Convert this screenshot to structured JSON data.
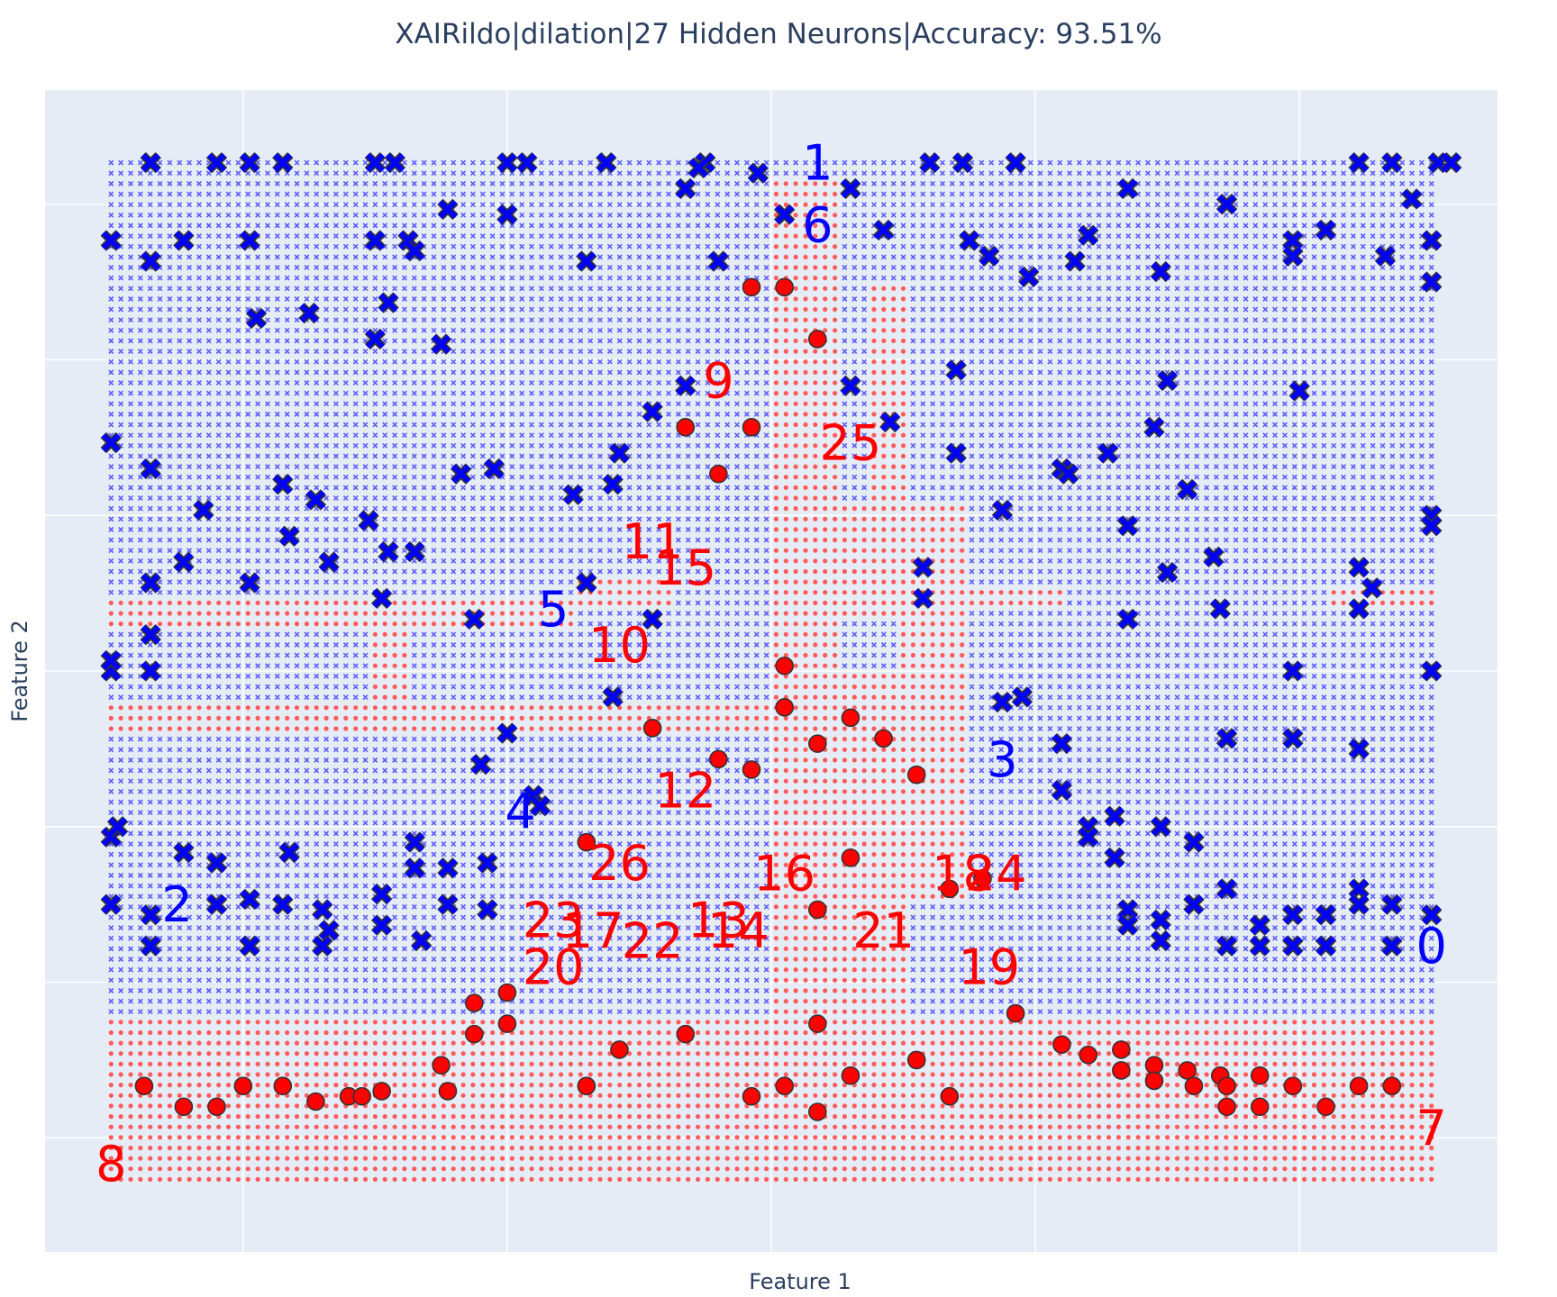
{
  "chart_data": {
    "type": "scatter",
    "title": "XAIRildo|dilation|27 Hidden Neurons|Accuracy: 93.51%",
    "xlabel": "Feature 1",
    "ylabel": "Feature 2",
    "xlim": [
      -1.1,
      1.1
    ],
    "ylim": [
      -1.12,
      1.12
    ],
    "xticks": [
      -0.8,
      -0.4,
      0,
      0.4,
      0.8
    ],
    "yticks": [
      -0.9,
      -0.6,
      -0.3,
      0,
      0.3,
      0.6,
      0.9
    ],
    "grid": true,
    "legend": "none",
    "colors": {
      "plot_bg": "#e5ecf6",
      "grid": "#ffffff",
      "class0": "#0000ff",
      "class1": "#ff0000",
      "grid_class0": "#5b5bff",
      "grid_class1": "#ff5b5b",
      "marker_outline": "#333333"
    },
    "decision_grid": {
      "x_range": [
        -1,
        1
      ],
      "y_range": [
        -0.98,
        0.98
      ],
      "columns": 136,
      "rows": 98,
      "background_class": 0,
      "class1_rectangles": [
        [
          -1,
          1,
          -0.98,
          -0.67
        ],
        [
          -1,
          -0.3,
          0.08,
          0.15
        ],
        [
          -1,
          0.3,
          -0.12,
          -0.07
        ],
        [
          -0.3,
          -0.15,
          0.12,
          0.19
        ],
        [
          -0.3,
          0.05,
          -0.12,
          -0.07
        ],
        [
          0.0,
          0.1,
          -0.67,
          0.95
        ],
        [
          0.15,
          0.2,
          0.1,
          0.75
        ],
        [
          0.1,
          0.25,
          0.1,
          0.33
        ],
        [
          0.0,
          0.3,
          0.1,
          0.33
        ],
        [
          0.0,
          0.3,
          -0.45,
          0.0
        ],
        [
          0.0,
          0.2,
          -0.67,
          -0.45
        ],
        [
          0.2,
          0.3,
          -0.05,
          0.1
        ],
        [
          -0.6,
          -0.55,
          -0.12,
          0.15
        ],
        [
          0.3,
          0.45,
          0.12,
          0.16
        ],
        [
          0.85,
          1.0,
          0.12,
          0.16
        ]
      ]
    },
    "series": [
      {
        "class": 0,
        "symbol": "x",
        "points": [
          [
            -0.94,
            0.98
          ],
          [
            -0.84,
            0.98
          ],
          [
            -0.79,
            0.98
          ],
          [
            -0.74,
            0.98
          ],
          [
            -0.6,
            0.98
          ],
          [
            -0.57,
            0.98
          ],
          [
            -0.4,
            0.98
          ],
          [
            -0.37,
            0.98
          ],
          [
            -0.25,
            0.98
          ],
          [
            -0.1,
            0.98
          ],
          [
            -0.11,
            0.97
          ],
          [
            -0.02,
            0.96
          ],
          [
            -0.13,
            0.93
          ],
          [
            0.12,
            0.93
          ],
          [
            0.24,
            0.98
          ],
          [
            0.29,
            0.98
          ],
          [
            0.37,
            0.98
          ],
          [
            0.54,
            0.93
          ],
          [
            -0.49,
            0.89
          ],
          [
            -0.4,
            0.88
          ],
          [
            0.02,
            0.88
          ],
          [
            0.69,
            0.9
          ],
          [
            0.89,
            0.98
          ],
          [
            0.94,
            0.98
          ],
          [
            1.01,
            0.98
          ],
          [
            1.03,
            0.98
          ],
          [
            0.97,
            0.91
          ],
          [
            -1.0,
            0.83
          ],
          [
            -0.89,
            0.83
          ],
          [
            -0.79,
            0.83
          ],
          [
            -0.6,
            0.83
          ],
          [
            -0.55,
            0.83
          ],
          [
            -0.94,
            0.79
          ],
          [
            -0.54,
            0.81
          ],
          [
            -0.28,
            0.79
          ],
          [
            -0.08,
            0.79
          ],
          [
            0.17,
            0.85
          ],
          [
            0.3,
            0.83
          ],
          [
            0.33,
            0.8
          ],
          [
            0.39,
            0.76
          ],
          [
            0.48,
            0.84
          ],
          [
            0.46,
            0.79
          ],
          [
            0.59,
            0.77
          ],
          [
            0.79,
            0.83
          ],
          [
            0.79,
            0.8
          ],
          [
            0.84,
            0.85
          ],
          [
            1.0,
            0.83
          ],
          [
            1.0,
            0.75
          ],
          [
            0.93,
            0.8
          ],
          [
            -0.78,
            0.68
          ],
          [
            -0.7,
            0.69
          ],
          [
            -0.58,
            0.71
          ],
          [
            -0.6,
            0.64
          ],
          [
            -0.5,
            0.63
          ],
          [
            -0.13,
            0.55
          ],
          [
            0.12,
            0.55
          ],
          [
            0.28,
            0.58
          ],
          [
            0.6,
            0.56
          ],
          [
            0.8,
            0.54
          ],
          [
            -1.0,
            0.44
          ],
          [
            -0.94,
            0.39
          ],
          [
            -0.86,
            0.31
          ],
          [
            -0.74,
            0.36
          ],
          [
            -0.69,
            0.33
          ],
          [
            -0.42,
            0.39
          ],
          [
            -0.47,
            0.38
          ],
          [
            -0.3,
            0.34
          ],
          [
            -0.18,
            0.5
          ],
          [
            -0.23,
            0.42
          ],
          [
            0.18,
            0.48
          ],
          [
            0.28,
            0.42
          ],
          [
            0.51,
            0.42
          ],
          [
            -0.61,
            0.29
          ],
          [
            -0.24,
            0.36
          ],
          [
            -0.54,
            0.23
          ],
          [
            0.35,
            0.31
          ],
          [
            0.44,
            0.39
          ],
          [
            0.45,
            0.38
          ],
          [
            0.58,
            0.47
          ],
          [
            0.63,
            0.35
          ],
          [
            0.54,
            0.28
          ],
          [
            1.0,
            0.3
          ],
          [
            1.0,
            0.28
          ],
          [
            -0.89,
            0.21
          ],
          [
            -0.94,
            0.17
          ],
          [
            -0.73,
            0.26
          ],
          [
            -0.67,
            0.21
          ],
          [
            -0.94,
            0.07
          ],
          [
            -0.79,
            0.17
          ],
          [
            -0.59,
            0.14
          ],
          [
            -0.45,
            0.1
          ],
          [
            -0.28,
            0.17
          ],
          [
            -0.18,
            0.1
          ],
          [
            0.23,
            0.2
          ],
          [
            0.23,
            0.14
          ],
          [
            0.6,
            0.19
          ],
          [
            0.67,
            0.22
          ],
          [
            0.68,
            0.12
          ],
          [
            0.89,
            0.2
          ],
          [
            0.89,
            0.12
          ],
          [
            0.91,
            0.16
          ],
          [
            -1.0,
            0.0
          ],
          [
            -1.0,
            0.02
          ],
          [
            -0.94,
            0.0
          ],
          [
            -0.58,
            0.23
          ],
          [
            0.54,
            0.1
          ],
          [
            0.79,
            0.0
          ],
          [
            1.0,
            0.0
          ],
          [
            -0.24,
            -0.05
          ],
          [
            0.35,
            -0.06
          ],
          [
            0.38,
            -0.05
          ],
          [
            0.44,
            -0.14
          ],
          [
            0.48,
            -0.3
          ],
          [
            0.44,
            -0.23
          ],
          [
            -0.4,
            -0.12
          ],
          [
            -0.36,
            -0.24
          ],
          [
            -0.35,
            -0.26
          ],
          [
            -0.44,
            -0.18
          ],
          [
            0.59,
            -0.3
          ],
          [
            0.52,
            -0.28
          ],
          [
            0.48,
            -0.32
          ],
          [
            0.52,
            -0.36
          ],
          [
            -1.0,
            -0.32
          ],
          [
            -1.0,
            -0.45
          ],
          [
            -0.89,
            -0.35
          ],
          [
            -0.84,
            -0.37
          ],
          [
            -0.84,
            -0.45
          ],
          [
            -0.79,
            -0.44
          ],
          [
            -0.73,
            -0.35
          ],
          [
            -0.74,
            -0.45
          ],
          [
            -0.68,
            -0.46
          ],
          [
            -0.67,
            -0.5
          ],
          [
            -0.59,
            -0.43
          ],
          [
            -0.59,
            -0.49
          ],
          [
            -0.54,
            -0.38
          ],
          [
            -0.54,
            -0.33
          ],
          [
            -0.49,
            -0.38
          ],
          [
            -0.49,
            -0.45
          ],
          [
            -0.43,
            -0.37
          ],
          [
            -0.43,
            -0.46
          ],
          [
            -0.99,
            -0.3
          ],
          [
            -0.94,
            -0.47
          ],
          [
            -0.94,
            -0.53
          ],
          [
            -0.79,
            -0.53
          ],
          [
            -0.68,
            -0.53
          ],
          [
            -0.53,
            -0.52
          ],
          [
            0.54,
            -0.46
          ],
          [
            0.54,
            -0.49
          ],
          [
            0.59,
            -0.48
          ],
          [
            0.59,
            -0.52
          ],
          [
            0.64,
            -0.45
          ],
          [
            0.69,
            -0.42
          ],
          [
            0.69,
            -0.53
          ],
          [
            0.74,
            -0.49
          ],
          [
            0.74,
            -0.53
          ],
          [
            0.79,
            -0.47
          ],
          [
            0.79,
            -0.53
          ],
          [
            0.84,
            -0.47
          ],
          [
            0.84,
            -0.53
          ],
          [
            0.89,
            -0.42
          ],
          [
            0.89,
            -0.45
          ],
          [
            0.94,
            -0.45
          ],
          [
            0.94,
            -0.53
          ],
          [
            1.0,
            -0.47
          ],
          [
            0.64,
            -0.33
          ],
          [
            0.69,
            -0.13
          ],
          [
            0.79,
            -0.13
          ],
          [
            0.89,
            -0.15
          ]
        ]
      },
      {
        "class": 1,
        "symbol": "circle",
        "points": [
          [
            -0.03,
            0.74
          ],
          [
            0.02,
            0.74
          ],
          [
            0.07,
            0.64
          ],
          [
            -0.13,
            0.47
          ],
          [
            -0.03,
            0.47
          ],
          [
            -0.08,
            0.38
          ],
          [
            0.02,
            0.01
          ],
          [
            0.02,
            -0.07
          ],
          [
            0.12,
            -0.09
          ],
          [
            0.07,
            -0.14
          ],
          [
            0.17,
            -0.13
          ],
          [
            -0.08,
            -0.17
          ],
          [
            -0.03,
            -0.19
          ],
          [
            0.22,
            -0.2
          ],
          [
            -0.18,
            -0.11
          ],
          [
            -0.28,
            -0.33
          ],
          [
            0.12,
            -0.36
          ],
          [
            0.07,
            -0.46
          ],
          [
            0.27,
            -0.42
          ],
          [
            0.32,
            -0.4
          ],
          [
            -0.4,
            -0.62
          ],
          [
            -0.45,
            -0.64
          ],
          [
            -0.45,
            -0.7
          ],
          [
            -0.4,
            -0.68
          ],
          [
            -0.23,
            -0.73
          ],
          [
            -0.13,
            -0.7
          ],
          [
            0.07,
            -0.68
          ],
          [
            0.37,
            -0.66
          ],
          [
            0.44,
            -0.72
          ],
          [
            0.48,
            -0.74
          ],
          [
            0.53,
            -0.73
          ],
          [
            0.58,
            -0.76
          ],
          [
            0.63,
            -0.77
          ],
          [
            0.68,
            -0.78
          ],
          [
            0.74,
            -0.78
          ],
          [
            0.07,
            -0.85
          ],
          [
            0.12,
            -0.78
          ],
          [
            0.22,
            -0.75
          ],
          [
            -0.5,
            -0.76
          ],
          [
            -0.28,
            -0.8
          ],
          [
            -0.49,
            -0.81
          ],
          [
            -0.95,
            -0.8
          ],
          [
            -0.8,
            -0.8
          ],
          [
            -0.74,
            -0.8
          ],
          [
            -0.89,
            -0.84
          ],
          [
            -0.84,
            -0.84
          ],
          [
            -0.69,
            -0.83
          ],
          [
            -0.64,
            -0.82
          ],
          [
            -0.59,
            -0.81
          ],
          [
            -0.03,
            -0.82
          ],
          [
            0.02,
            -0.8
          ],
          [
            0.27,
            -0.82
          ],
          [
            0.53,
            -0.77
          ],
          [
            0.58,
            -0.79
          ],
          [
            0.64,
            -0.8
          ],
          [
            0.69,
            -0.8
          ],
          [
            0.79,
            -0.8
          ],
          [
            0.89,
            -0.8
          ],
          [
            0.94,
            -0.8
          ],
          [
            0.69,
            -0.84
          ],
          [
            0.74,
            -0.84
          ],
          [
            0.84,
            -0.84
          ],
          [
            -0.62,
            -0.82
          ]
        ]
      }
    ],
    "annotations": [
      {
        "text": "0",
        "x": 1.0,
        "y": -0.53,
        "class": 0
      },
      {
        "text": "1",
        "x": 0.07,
        "y": 0.98,
        "class": 0
      },
      {
        "text": "2",
        "x": -0.9,
        "y": -0.45,
        "class": 0
      },
      {
        "text": "3",
        "x": 0.35,
        "y": -0.17,
        "class": 0
      },
      {
        "text": "4",
        "x": -0.38,
        "y": -0.27,
        "class": 0
      },
      {
        "text": "5",
        "x": -0.33,
        "y": 0.12,
        "class": 0
      },
      {
        "text": "6",
        "x": 0.07,
        "y": 0.86,
        "class": 0
      },
      {
        "text": "7",
        "x": 1.0,
        "y": -0.88,
        "class": 1
      },
      {
        "text": "8",
        "x": -1.0,
        "y": -0.95,
        "class": 1
      },
      {
        "text": "9",
        "x": -0.08,
        "y": 0.56,
        "class": 1
      },
      {
        "text": "10",
        "x": -0.23,
        "y": 0.05,
        "class": 1
      },
      {
        "text": "11",
        "x": -0.18,
        "y": 0.25,
        "class": 1
      },
      {
        "text": "12",
        "x": -0.13,
        "y": -0.23,
        "class": 1
      },
      {
        "text": "13",
        "x": -0.08,
        "y": -0.48,
        "class": 1
      },
      {
        "text": "14",
        "x": -0.05,
        "y": -0.5,
        "class": 1
      },
      {
        "text": "15",
        "x": -0.13,
        "y": 0.2,
        "class": 1
      },
      {
        "text": "16",
        "x": 0.02,
        "y": -0.39,
        "class": 1
      },
      {
        "text": "17",
        "x": -0.27,
        "y": -0.5,
        "class": 1
      },
      {
        "text": "18",
        "x": 0.29,
        "y": -0.39,
        "class": 1
      },
      {
        "text": "19",
        "x": 0.33,
        "y": -0.57,
        "class": 1
      },
      {
        "text": "20",
        "x": -0.33,
        "y": -0.57,
        "class": 1
      },
      {
        "text": "21",
        "x": 0.17,
        "y": -0.5,
        "class": 1
      },
      {
        "text": "22",
        "x": -0.18,
        "y": -0.52,
        "class": 1
      },
      {
        "text": "23",
        "x": -0.33,
        "y": -0.48,
        "class": 1
      },
      {
        "text": "24",
        "x": 0.34,
        "y": -0.39,
        "class": 1
      },
      {
        "text": "25",
        "x": 0.12,
        "y": 0.44,
        "class": 1
      },
      {
        "text": "26",
        "x": -0.23,
        "y": -0.37,
        "class": 1
      }
    ]
  }
}
